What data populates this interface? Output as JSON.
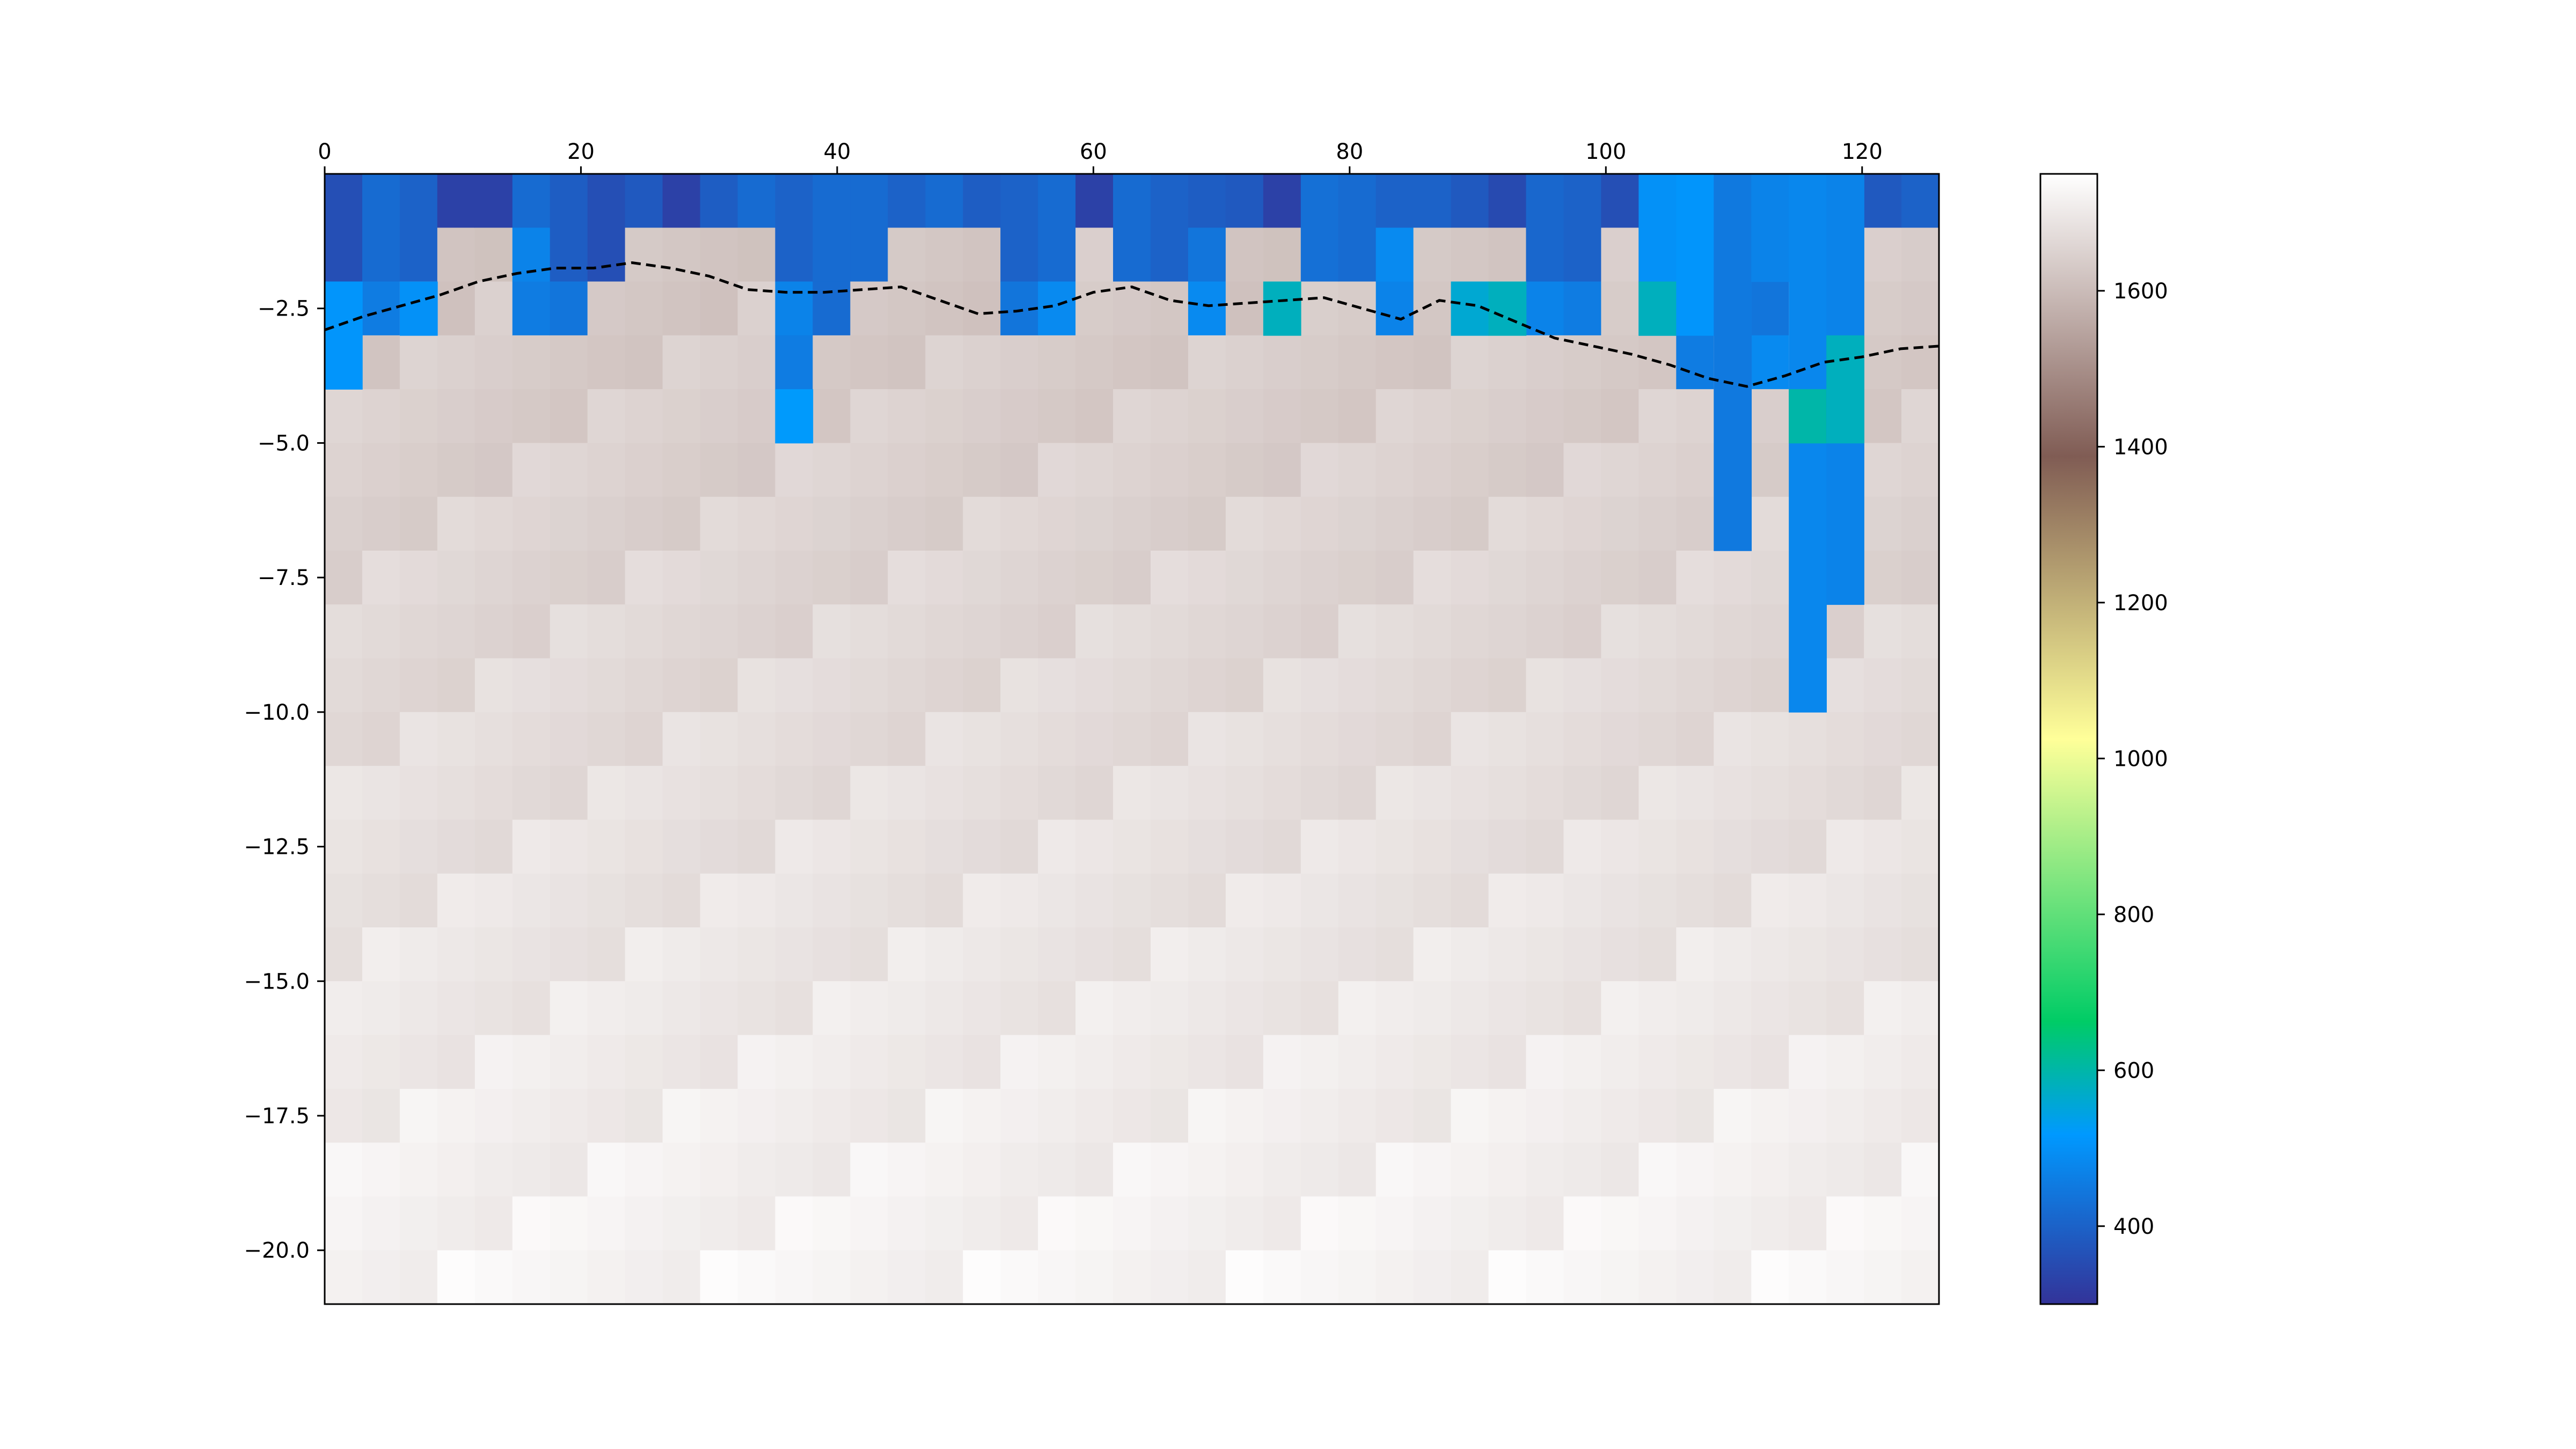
{
  "chart_data": {
    "type": "heatmap",
    "title": "",
    "xlabel": "",
    "ylabel": "",
    "x_axis_position": "top",
    "xlim": [
      0,
      126
    ],
    "ylim": [
      -21,
      0
    ],
    "x_ticks": [
      0,
      20,
      40,
      60,
      80,
      100,
      120
    ],
    "y_ticks": [
      -2.5,
      -5.0,
      -7.5,
      -10.0,
      -12.5,
      -15.0,
      -17.5,
      -20.0
    ],
    "x_tick_labels": [
      "0",
      "20",
      "40",
      "60",
      "80",
      "100",
      "120"
    ],
    "y_tick_labels": [
      "−2.5",
      "−5.0",
      "−7.5",
      "−10.0",
      "−12.5",
      "−15.0",
      "−17.5",
      "−20.0"
    ],
    "grid": false,
    "columns": {
      "count": 43,
      "x_start": 0,
      "x_step": 2.93
    },
    "depth_layers": {
      "top": 0,
      "step": -1,
      "count": 21
    },
    "value_profiles": {
      "water_depth_per_column": [
        2,
        2,
        2,
        1,
        1,
        1,
        2,
        2,
        1,
        1,
        1,
        1,
        2,
        3,
        2,
        1,
        1,
        1,
        2,
        2,
        1,
        2,
        2,
        1,
        1,
        1,
        2,
        2,
        1,
        1,
        1,
        1,
        2,
        2,
        1,
        2,
        2,
        1,
        2,
        2,
        1,
        1,
        1
      ],
      "water_value_per_column": [
        360,
        420,
        400,
        330,
        330,
        420,
        390,
        360,
        380,
        330,
        390,
        420,
        400,
        420,
        420,
        400,
        420,
        390,
        400,
        420,
        330,
        420,
        400,
        390,
        380,
        330,
        430,
        420,
        400,
        400,
        380,
        350,
        410,
        400,
        360,
        360,
        410,
        360,
        420,
        400,
        360,
        380,
        400
      ],
      "transition_depth_per_column": [
        4,
        3,
        2,
        0,
        0,
        3,
        3,
        0,
        0,
        0,
        0,
        0,
        5,
        0,
        0,
        0,
        0,
        0,
        3,
        3,
        0,
        0,
        0,
        3,
        0,
        0,
        0,
        0,
        3,
        0,
        0,
        0,
        3,
        3,
        0,
        3,
        4,
        0,
        4,
        0,
        0,
        0,
        0
      ],
      "deep_value_top": 1620,
      "deep_value_bottom": 1725
    },
    "special_cells": [
      {
        "col": 2,
        "depth_from": 2,
        "depth_to": 3,
        "value": 500
      },
      {
        "col": 0,
        "depth_from": 2,
        "depth_to": 4,
        "value": 510
      },
      {
        "col": 12,
        "depth_from": 4,
        "depth_to": 5,
        "value": 520
      },
      {
        "col": 25,
        "depth_from": 2,
        "depth_to": 3,
        "value": 580
      },
      {
        "col": 30,
        "depth_from": 2,
        "depth_to": 3,
        "value": 560
      },
      {
        "col": 31,
        "depth_from": 2,
        "depth_to": 3,
        "value": 580
      },
      {
        "col": 35,
        "depth_from": 0,
        "depth_to": 3,
        "value": 500
      },
      {
        "col": 35,
        "depth_from": 2,
        "depth_to": 3,
        "value": 580
      },
      {
        "col": 36,
        "depth_from": 0,
        "depth_to": 3,
        "value": 510
      },
      {
        "col": 37,
        "depth_from": 0,
        "depth_to": 7,
        "value": 450
      },
      {
        "col": 38,
        "depth_from": 0,
        "depth_to": 2,
        "value": 470
      },
      {
        "col": 39,
        "depth_from": 0,
        "depth_to": 10,
        "value": 480
      },
      {
        "col": 39,
        "depth_from": 4,
        "depth_to": 5,
        "value": 600
      },
      {
        "col": 40,
        "depth_from": 0,
        "depth_to": 8,
        "value": 470
      },
      {
        "col": 40,
        "depth_from": 3,
        "depth_to": 5,
        "value": 580
      }
    ],
    "line_series": {
      "style": "dashed",
      "color": "#000000",
      "x": [
        0,
        3,
        6,
        9,
        12,
        15,
        18,
        21,
        24,
        27,
        30,
        33,
        36,
        39,
        42,
        45,
        48,
        51,
        54,
        57,
        60,
        63,
        66,
        69,
        72,
        75,
        78,
        81,
        84,
        87,
        90,
        93,
        96,
        99,
        102,
        105,
        108,
        111,
        114,
        117,
        120,
        123,
        126
      ],
      "y": [
        -2.9,
        -2.65,
        -2.45,
        -2.25,
        -2.0,
        -1.85,
        -1.75,
        -1.75,
        -1.65,
        -1.75,
        -1.9,
        -2.15,
        -2.2,
        -2.2,
        -2.15,
        -2.1,
        -2.35,
        -2.6,
        -2.55,
        -2.45,
        -2.2,
        -2.1,
        -2.35,
        -2.45,
        -2.4,
        -2.35,
        -2.3,
        -2.5,
        -2.7,
        -2.35,
        -2.45,
        -2.75,
        -3.05,
        -3.2,
        -3.35,
        -3.55,
        -3.8,
        -3.95,
        -3.75,
        -3.5,
        -3.4,
        -3.25,
        -3.2
      ]
    },
    "colorbar": {
      "colormap": "terrain",
      "range": [
        300,
        1750
      ],
      "ticks": [
        400,
        600,
        800,
        1000,
        1200,
        1400,
        1600
      ],
      "tick_labels": [
        "400",
        "600",
        "800",
        "1000",
        "1200",
        "1400",
        "1600"
      ]
    }
  }
}
